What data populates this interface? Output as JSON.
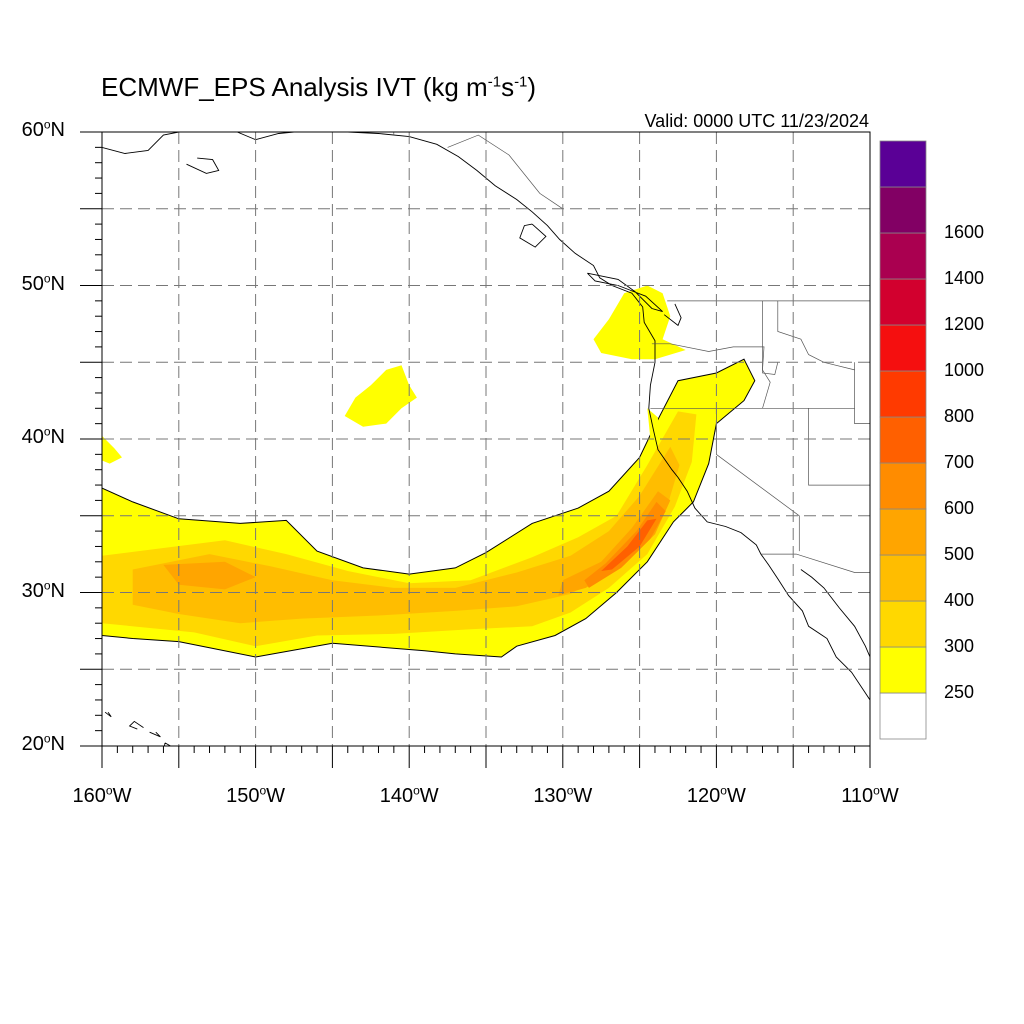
{
  "title": {
    "main": "ECMWF_EPS Analysis IVT (kg m",
    "sup1": "-1",
    "mid": "s",
    "sup2": "-1",
    "end": ")"
  },
  "valid": "Valid: 0000 UTC 11/23/2024",
  "map": {
    "projection": "cylindrical",
    "lon_range": [
      -160,
      -110
    ],
    "lat_range": [
      20,
      60
    ],
    "grid": "dashed, 5 degree",
    "lat_labels": [
      {
        "value": 60,
        "num": "60",
        "deg": "o",
        "hemi": "N"
      },
      {
        "value": 50,
        "num": "50",
        "deg": "o",
        "hemi": "N"
      },
      {
        "value": 40,
        "num": "40",
        "deg": "o",
        "hemi": "N"
      },
      {
        "value": 30,
        "num": "30",
        "deg": "o",
        "hemi": "N"
      },
      {
        "value": 20,
        "num": "20",
        "deg": "o",
        "hemi": "N"
      }
    ],
    "lon_labels": [
      {
        "value": -160,
        "num": "160",
        "deg": "o",
        "hemi": "W"
      },
      {
        "value": -150,
        "num": "150",
        "deg": "o",
        "hemi": "W"
      },
      {
        "value": -140,
        "num": "140",
        "deg": "o",
        "hemi": "W"
      },
      {
        "value": -130,
        "num": "130",
        "deg": "o",
        "hemi": "W"
      },
      {
        "value": -120,
        "num": "120",
        "deg": "o",
        "hemi": "W"
      },
      {
        "value": -110,
        "num": "110",
        "deg": "o",
        "hemi": "W"
      }
    ],
    "features": [
      "coastlines",
      "country borders",
      "US state borders",
      "atmospheric river IVT shading"
    ]
  },
  "colorbar": {
    "bins": [
      {
        "lower": null,
        "color": "#ffffff"
      },
      {
        "lower": 250,
        "color": "#ffff00"
      },
      {
        "lower": 300,
        "color": "#ffd800"
      },
      {
        "lower": 400,
        "color": "#ffbd00"
      },
      {
        "lower": 500,
        "color": "#ffa500"
      },
      {
        "lower": 600,
        "color": "#ff8c00"
      },
      {
        "lower": 700,
        "color": "#ff6000"
      },
      {
        "lower": 800,
        "color": "#ff3a00"
      },
      {
        "lower": 1000,
        "color": "#f50f0f"
      },
      {
        "lower": 1200,
        "color": "#d2002e"
      },
      {
        "lower": 1400,
        "color": "#aa0050"
      },
      {
        "lower": 1600,
        "color": "#820064"
      },
      {
        "lower": null,
        "color": "#5a0096"
      }
    ],
    "labels": [
      "250",
      "300",
      "400",
      "500",
      "600",
      "700",
      "800",
      "1000",
      "1200",
      "1400",
      "1600"
    ]
  },
  "ivt_regions": [
    {
      "name": "main-ar-contour",
      "min_ivt": 250,
      "outline": [
        [
          -160,
          36.8
        ],
        [
          -158,
          35.9
        ],
        [
          -155,
          34.8
        ],
        [
          -151,
          34.5
        ],
        [
          -148,
          34.7
        ],
        [
          -146,
          32.7
        ],
        [
          -143,
          31.6
        ],
        [
          -140,
          31.2
        ],
        [
          -137,
          31.6
        ],
        [
          -135,
          32.6
        ],
        [
          -132,
          34.5
        ],
        [
          -129,
          35.5
        ],
        [
          -127,
          36.6
        ],
        [
          -125,
          38.8
        ],
        [
          -124,
          40.9
        ],
        [
          -122.5,
          43.8
        ],
        [
          -120,
          44.3
        ],
        [
          -118.2,
          45.2
        ],
        [
          -117.5,
          43.8
        ],
        [
          -118.2,
          42.5
        ],
        [
          -120,
          41.0
        ],
        [
          -120.5,
          38.4
        ],
        [
          -121.5,
          35.9
        ],
        [
          -122.8,
          34.6
        ],
        [
          -124.5,
          32.0
        ],
        [
          -126.5,
          30.0
        ],
        [
          -128.5,
          28.3
        ],
        [
          -130.5,
          27.2
        ],
        [
          -133,
          26.5
        ],
        [
          -134,
          25.8
        ],
        [
          -137,
          26.0
        ],
        [
          -139,
          26.2
        ],
        [
          -145,
          26.7
        ],
        [
          -150,
          25.8
        ],
        [
          -153,
          26.4
        ],
        [
          -155,
          26.8
        ],
        [
          -158,
          27.0
        ],
        [
          -160,
          27.2
        ]
      ]
    },
    {
      "name": "ar-core-300",
      "min_ivt": 300,
      "outline": [
        [
          -160,
          32.4
        ],
        [
          -156,
          32.9
        ],
        [
          -152,
          33.4
        ],
        [
          -148,
          32.5
        ],
        [
          -144,
          31.4
        ],
        [
          -140,
          30.6
        ],
        [
          -136,
          30.8
        ],
        [
          -132,
          32.3
        ],
        [
          -129,
          33.6
        ],
        [
          -126.5,
          35.0
        ],
        [
          -124.5,
          38.3
        ],
        [
          -122.5,
          41.8
        ],
        [
          -121.3,
          41.6
        ],
        [
          -121.6,
          38.5
        ],
        [
          -122.7,
          35.6
        ],
        [
          -124.5,
          32.5
        ],
        [
          -127,
          30.3
        ],
        [
          -129.5,
          28.7
        ],
        [
          -132,
          27.8
        ],
        [
          -136,
          27.6
        ],
        [
          -141,
          27.3
        ],
        [
          -146,
          27.2
        ],
        [
          -150,
          26.5
        ],
        [
          -154,
          27.4
        ],
        [
          -160,
          28.0
        ]
      ]
    },
    {
      "name": "ar-core-400",
      "min_ivt": 400,
      "outline": [
        [
          -158,
          31.5
        ],
        [
          -153,
          32.5
        ],
        [
          -149,
          31.7
        ],
        [
          -145,
          30.8
        ],
        [
          -141,
          30.3
        ],
        [
          -137,
          30.3
        ],
        [
          -133,
          31.3
        ],
        [
          -129.5,
          32.4
        ],
        [
          -127,
          34.0
        ],
        [
          -125,
          36.3
        ],
        [
          -123,
          39.5
        ],
        [
          -122.4,
          38.3
        ],
        [
          -123.2,
          35.6
        ],
        [
          -125,
          33.2
        ],
        [
          -127,
          31.3
        ],
        [
          -129.5,
          29.9
        ],
        [
          -133,
          29.1
        ],
        [
          -137,
          28.8
        ],
        [
          -142,
          28.5
        ],
        [
          -147,
          28.3
        ],
        [
          -151,
          28.0
        ],
        [
          -155,
          28.6
        ],
        [
          -158,
          29.2
        ]
      ]
    },
    {
      "name": "ar-core-500",
      "min_ivt": 500,
      "outline": [
        [
          -156,
          31.8
        ],
        [
          -152,
          32.0
        ],
        [
          -150,
          31.0
        ],
        [
          -152,
          30.2
        ],
        [
          -155,
          30.5
        ]
      ]
    },
    {
      "name": "ar-core-500-east",
      "min_ivt": 500,
      "outline": [
        [
          -130,
          30.8
        ],
        [
          -127.5,
          32.0
        ],
        [
          -125.5,
          34.2
        ],
        [
          -123.8,
          36.6
        ],
        [
          -123.0,
          36.0
        ],
        [
          -124.0,
          33.8
        ],
        [
          -126,
          31.8
        ],
        [
          -128.5,
          30.3
        ],
        [
          -130.3,
          29.8
        ]
      ]
    },
    {
      "name": "ar-core-600",
      "min_ivt": 600,
      "outline": [
        [
          -128.6,
          30.8
        ],
        [
          -127.2,
          31.9
        ],
        [
          -125.2,
          34.0
        ],
        [
          -123.9,
          35.9
        ],
        [
          -123.3,
          35.3
        ],
        [
          -124.3,
          33.5
        ],
        [
          -126.2,
          31.6
        ],
        [
          -128.3,
          30.3
        ]
      ]
    },
    {
      "name": "ar-core-700",
      "min_ivt": 700,
      "outline": [
        [
          -127.5,
          31.4
        ],
        [
          -125.8,
          33.0
        ],
        [
          -124.5,
          34.7
        ],
        [
          -123.9,
          34.8
        ],
        [
          -125.0,
          33.0
        ],
        [
          -126.8,
          31.5
        ]
      ]
    },
    {
      "name": "patch-north-pacific",
      "min_ivt": 250,
      "outline": [
        [
          -143.5,
          42.7
        ],
        [
          -142.5,
          43.5
        ],
        [
          -141.5,
          44.5
        ],
        [
          -140.5,
          44.8
        ],
        [
          -140,
          43.5
        ],
        [
          -139.5,
          42.7
        ],
        [
          -140.5,
          42.0
        ],
        [
          -141.5,
          41.0
        ],
        [
          -143,
          40.8
        ],
        [
          -144.2,
          41.5
        ]
      ]
    },
    {
      "name": "patch-oregon-coast",
      "min_ivt": 250,
      "outline": [
        [
          -128,
          46.5
        ],
        [
          -127,
          47.8
        ],
        [
          -126,
          49.5
        ],
        [
          -124.5,
          50.0
        ],
        [
          -123.5,
          49.5
        ],
        [
          -123,
          48.0
        ],
        [
          -123.5,
          46.5
        ],
        [
          -122,
          45.8
        ],
        [
          -124,
          45.2
        ],
        [
          -125.5,
          45.2
        ],
        [
          -127.5,
          45.6
        ]
      ]
    },
    {
      "name": "patch-west-edge",
      "min_ivt": 250,
      "outline": [
        [
          -160,
          40.2
        ],
        [
          -159.2,
          39.4
        ],
        [
          -158.7,
          38.8
        ],
        [
          -159.5,
          38.4
        ],
        [
          -160,
          38.6
        ]
      ]
    },
    {
      "name": "patch-n-cal-coast",
      "min_ivt": 250,
      "outline": [
        [
          -124.5,
          42.0
        ],
        [
          -123.8,
          41.4
        ],
        [
          -123.8,
          40.2
        ],
        [
          -124.3,
          40.0
        ]
      ]
    }
  ],
  "coastlines": [
    [
      [
        -160,
        59.0
      ],
      [
        -158.5,
        58.6
      ],
      [
        -157.0,
        58.8
      ],
      [
        -156.0,
        59.8
      ],
      [
        -155.0,
        60.0
      ]
    ],
    [
      [
        -154.5,
        57.9
      ],
      [
        -153.2,
        57.3
      ],
      [
        -152.4,
        57.5
      ],
      [
        -152.8,
        58.2
      ],
      [
        -153.8,
        58.3
      ]
    ],
    [
      [
        -151.2,
        60.0
      ],
      [
        -150.0,
        59.5
      ],
      [
        -148.5,
        59.9
      ],
      [
        -147.5,
        60.0
      ]
    ],
    [
      [
        -144.0,
        60.0
      ],
      [
        -142.0,
        59.9
      ],
      [
        -140.0,
        59.7
      ],
      [
        -138.2,
        59.2
      ],
      [
        -136.8,
        58.4
      ],
      [
        -135.6,
        57.5
      ],
      [
        -134.4,
        56.5
      ],
      [
        -133.0,
        55.6
      ],
      [
        -132.0,
        54.8
      ],
      [
        -131.0,
        53.9
      ],
      [
        -130.2,
        53.0
      ],
      [
        -129.2,
        52.1
      ],
      [
        -128.0,
        51.3
      ],
      [
        -127.6,
        50.5
      ],
      [
        -126.8,
        50.0
      ],
      [
        -125.5,
        49.5
      ],
      [
        -124.8,
        48.6
      ],
      [
        -124.7,
        47.6
      ],
      [
        -124.0,
        46.4
      ],
      [
        -124.0,
        45.0
      ],
      [
        -124.3,
        43.5
      ],
      [
        -124.4,
        42.0
      ],
      [
        -124.1,
        40.6
      ],
      [
        -123.8,
        39.3
      ],
      [
        -122.9,
        38.0
      ],
      [
        -122.5,
        37.5
      ],
      [
        -121.9,
        36.6
      ],
      [
        -121.4,
        35.5
      ],
      [
        -120.6,
        34.6
      ],
      [
        -119.4,
        34.3
      ],
      [
        -118.4,
        33.9
      ],
      [
        -117.4,
        33.1
      ],
      [
        -117.1,
        32.5
      ],
      [
        -116.6,
        31.8
      ],
      [
        -116.0,
        30.9
      ],
      [
        -115.3,
        29.8
      ],
      [
        -114.4,
        28.8
      ],
      [
        -114.0,
        27.8
      ],
      [
        -112.8,
        27.0
      ],
      [
        -112.2,
        25.8
      ],
      [
        -111.2,
        24.8
      ],
      [
        -110.4,
        23.6
      ],
      [
        -110.0,
        23.0
      ]
    ],
    [
      [
        -114.5,
        31.5
      ],
      [
        -113.8,
        31.0
      ],
      [
        -113.0,
        30.3
      ],
      [
        -112.0,
        29.0
      ],
      [
        -111.0,
        27.8
      ],
      [
        -110.3,
        26.5
      ],
      [
        -110.0,
        25.8
      ]
    ],
    [
      [
        -128.4,
        50.8
      ],
      [
        -126.4,
        50.4
      ],
      [
        -125.3,
        49.6
      ],
      [
        -124.2,
        48.5
      ],
      [
        -123.5,
        48.3
      ],
      [
        -124.6,
        49.3
      ],
      [
        -126.4,
        50.0
      ],
      [
        -127.9,
        50.3
      ],
      [
        -128.4,
        50.8
      ]
    ],
    [
      [
        -132.0,
        54.0
      ],
      [
        -131.1,
        53.2
      ],
      [
        -131.8,
        52.5
      ],
      [
        -132.8,
        53.1
      ],
      [
        -132.5,
        53.9
      ],
      [
        -132.0,
        54.0
      ]
    ],
    [
      [
        -123.4,
        48.1
      ],
      [
        -122.5,
        47.4
      ],
      [
        -122.3,
        47.9
      ],
      [
        -122.7,
        48.8
      ]
    ],
    [
      [
        -155.9,
        20.2
      ],
      [
        -155.0,
        19.7
      ],
      [
        -155.5,
        19.0
      ],
      [
        -156.0,
        19.6
      ],
      [
        -155.9,
        20.2
      ]
    ],
    [
      [
        -157.3,
        21.2
      ],
      [
        -157.9,
        21.6
      ],
      [
        -158.2,
        21.3
      ],
      [
        -157.7,
        21.1
      ]
    ],
    [
      [
        -156.9,
        20.9
      ],
      [
        -156.2,
        20.6
      ],
      [
        -156.5,
        20.9
      ]
    ],
    [
      [
        -159.8,
        22.2
      ],
      [
        -159.4,
        21.9
      ],
      [
        -159.6,
        22.2
      ]
    ]
  ],
  "borders": [
    [
      [
        -141.0,
        60.0
      ],
      [
        -141.0,
        59.8
      ]
    ],
    [
      [
        -137.5,
        59.0
      ],
      [
        -135.5,
        59.8
      ],
      [
        -133.5,
        58.5
      ],
      [
        -131.5,
        56.0
      ],
      [
        -130.0,
        55.0
      ]
    ],
    [
      [
        -123.2,
        49.0
      ],
      [
        -110.0,
        49.0
      ]
    ],
    [
      [
        -117.1,
        32.5
      ],
      [
        -114.8,
        32.5
      ],
      [
        -111.0,
        31.3
      ],
      [
        -110.0,
        31.3
      ]
    ],
    [
      [
        -124.2,
        46.2
      ],
      [
        -123.0,
        46.2
      ],
      [
        -120.5,
        45.7
      ],
      [
        -118.9,
        46.0
      ],
      [
        -116.9,
        46.0
      ],
      [
        -117.0,
        44.5
      ],
      [
        -116.5,
        43.7
      ],
      [
        -117.0,
        42.0
      ]
    ],
    [
      [
        -124.3,
        42.0
      ],
      [
        -117.0,
        42.0
      ],
      [
        -114.0,
        42.0
      ],
      [
        -111.0,
        42.0
      ],
      [
        -111.0,
        41.0
      ],
      [
        -110.0,
        41.0
      ]
    ],
    [
      [
        -120.0,
        42.0
      ],
      [
        -120.0,
        39.0
      ],
      [
        -114.6,
        35.0
      ],
      [
        -114.6,
        32.7
      ]
    ],
    [
      [
        -117.0,
        49.0
      ],
      [
        -117.0,
        44.3
      ],
      [
        -116.2,
        44.2
      ],
      [
        -116.0,
        45.0
      ]
    ],
    [
      [
        -114.0,
        42.0
      ],
      [
        -114.0,
        37.0
      ],
      [
        -110.0,
        37.0
      ]
    ],
    [
      [
        -111.0,
        45.0
      ],
      [
        -111.0,
        42.0
      ]
    ],
    [
      [
        -116.0,
        49.0
      ],
      [
        -116.0,
        47.0
      ],
      [
        -114.5,
        46.5
      ],
      [
        -114.0,
        45.5
      ],
      [
        -113.0,
        45.0
      ],
      [
        -111.0,
        44.5
      ]
    ]
  ]
}
